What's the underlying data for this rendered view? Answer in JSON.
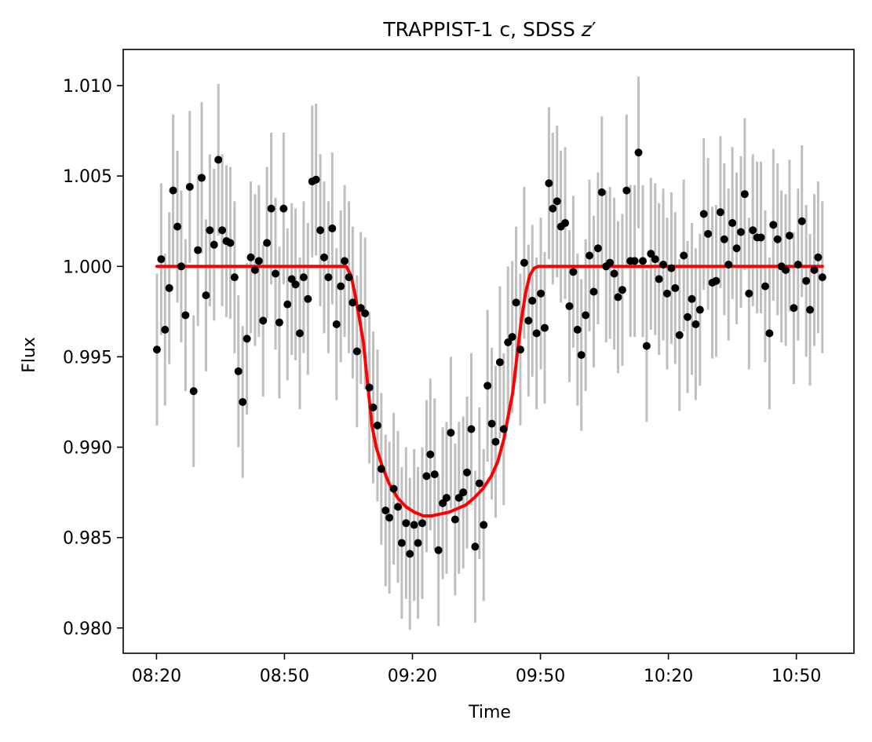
{
  "chart_data": {
    "type": "scatter",
    "title": "TRAPPIST-1 c, SDSS ",
    "title_band": "z",
    "title_band_suffix": "′",
    "xlabel": "Time",
    "ylabel": "Flux",
    "x_ticks": [
      "08:20",
      "08:50",
      "09:20",
      "09:50",
      "10:20",
      "10:50"
    ],
    "x_tick_minutes": [
      500,
      530,
      560,
      590,
      620,
      650
    ],
    "y_ticks": [
      "0.980",
      "0.985",
      "0.990",
      "0.995",
      "1.000",
      "1.005",
      "1.010"
    ],
    "y_tick_values": [
      0.98,
      0.985,
      0.99,
      0.995,
      1.0,
      1.005,
      1.01
    ],
    "xlim_minutes": [
      492.2,
      663.5
    ],
    "ylim": [
      0.9786,
      1.012
    ],
    "grid": false,
    "colors": {
      "points": "#000000",
      "errorbars": "#bfbfbf",
      "model": "#ff0000"
    },
    "series": [
      {
        "kind": "observations",
        "error": 0.0042,
        "x_minutes": [
          500.1,
          501.1,
          502.0,
          503.0,
          503.9,
          504.9,
          505.8,
          506.8,
          507.8,
          508.7,
          509.7,
          510.6,
          511.6,
          512.5,
          513.5,
          514.5,
          515.4,
          516.4,
          517.3,
          518.3,
          519.2,
          520.2,
          521.2,
          522.1,
          523.1,
          524.0,
          525.0,
          525.9,
          526.9,
          527.9,
          528.8,
          529.8,
          530.7,
          531.7,
          532.6,
          533.6,
          534.5,
          535.5,
          536.5,
          537.4,
          538.4,
          539.3,
          540.3,
          541.2,
          542.2,
          543.2,
          544.1,
          545.1,
          546.0,
          547.0,
          547.9,
          548.9,
          549.9,
          550.8,
          551.8,
          552.7,
          553.7,
          554.6,
          555.6,
          556.6,
          557.5,
          558.5,
          559.4,
          560.4,
          561.3,
          562.3,
          563.3,
          564.2,
          565.2,
          566.1,
          567.1,
          568.0,
          569.0,
          570.0,
          570.9,
          571.9,
          572.8,
          573.8,
          574.7,
          575.7,
          576.7,
          577.6,
          578.6,
          579.5,
          580.5,
          581.4,
          582.4,
          583.4,
          584.3,
          585.3,
          586.2,
          587.2,
          588.1,
          589.1,
          590.1,
          591.0,
          592.0,
          592.9,
          593.9,
          594.8,
          595.8,
          596.8,
          597.7,
          598.7,
          599.6,
          600.6,
          601.5,
          602.5,
          603.5,
          604.4,
          605.4,
          606.3,
          607.3,
          608.2,
          609.2,
          610.2,
          611.1,
          612.1,
          613.0,
          614.0,
          614.9,
          615.9,
          616.9,
          617.8,
          618.8,
          619.7,
          620.7,
          621.6,
          622.6,
          623.6,
          624.5,
          625.5,
          626.4,
          627.4,
          628.3,
          629.3,
          630.3,
          631.2,
          632.2,
          633.1,
          634.1,
          635.0,
          636.0,
          637.0,
          637.9,
          638.9,
          639.8,
          640.8,
          641.7,
          642.7,
          643.7,
          644.6,
          645.6,
          646.5,
          647.5,
          648.4,
          649.4,
          650.4,
          651.3,
          652.3,
          653.2,
          654.2,
          655.1,
          656.1
        ],
        "flux": [
          0.9954,
          1.0004,
          0.9965,
          0.9988,
          1.0042,
          1.0022,
          1.0,
          0.9973,
          1.0044,
          0.9931,
          1.0009,
          1.0049,
          0.9984,
          1.002,
          1.0012,
          1.0059,
          1.002,
          1.0014,
          1.0013,
          0.9994,
          0.9942,
          0.9925,
          0.996,
          1.0005,
          0.9998,
          1.0003,
          0.997,
          1.0013,
          1.0032,
          0.9996,
          0.9969,
          1.0032,
          0.9979,
          0.9993,
          0.999,
          0.9963,
          0.9994,
          0.9982,
          1.0047,
          1.0048,
          1.002,
          1.0005,
          0.9994,
          1.0021,
          0.9968,
          0.9989,
          1.0003,
          0.9994,
          0.998,
          0.9953,
          0.9977,
          0.9974,
          0.9933,
          0.9922,
          0.9912,
          0.9888,
          0.9865,
          0.9861,
          0.9877,
          0.9867,
          0.9847,
          0.9858,
          0.9841,
          0.9857,
          0.9847,
          0.9858,
          0.9884,
          0.9896,
          0.9885,
          0.9843,
          0.9869,
          0.9872,
          0.9908,
          0.986,
          0.9872,
          0.9875,
          0.9886,
          0.991,
          0.9845,
          0.988,
          0.9857,
          0.9934,
          0.9913,
          0.9903,
          0.9947,
          0.991,
          0.9958,
          0.9961,
          0.998,
          0.9954,
          1.0002,
          0.997,
          0.9981,
          0.9963,
          0.9985,
          0.9966,
          1.0046,
          1.0032,
          1.0036,
          1.0022,
          1.0024,
          0.9978,
          0.9997,
          0.9965,
          0.9951,
          0.9973,
          1.0006,
          0.9986,
          1.001,
          1.0041,
          1.0,
          1.0002,
          0.9996,
          0.9983,
          0.9987,
          1.0042,
          1.0003,
          1.0003,
          1.0063,
          1.0003,
          0.9956,
          1.0007,
          1.0004,
          0.9993,
          1.0001,
          0.9985,
          0.9999,
          0.9988,
          0.9962,
          1.0006,
          0.9972,
          0.9982,
          0.9968,
          0.9976,
          1.0029,
          1.0018,
          0.9991,
          0.9992,
          1.003,
          1.0015,
          1.0001,
          1.0024,
          1.001,
          1.0019,
          1.004,
          0.9985,
          1.002,
          1.0016,
          1.0016,
          0.9989,
          0.9963,
          1.0023,
          1.0015,
          1.0,
          0.9998,
          1.0017,
          0.9977,
          1.0001,
          1.0025,
          0.9992,
          0.9976,
          0.9998,
          1.0005,
          0.9994
        ]
      },
      {
        "kind": "model",
        "x_minutes": [
          500.1,
          544.5,
          545.6,
          546.5,
          547.5,
          548.5,
          549.5,
          550.5,
          551.5,
          553.0,
          554.5,
          556.5,
          558.5,
          560.5,
          562.5,
          564.5,
          566.5,
          568.5,
          570.5,
          572.5,
          574.5,
          576.5,
          578.5,
          580.0,
          581.5,
          582.5,
          583.5,
          584.5,
          585.5,
          586.5,
          587.5,
          588.5,
          589.5,
          656.1
        ],
        "flux": [
          1.0,
          1.0,
          0.9995,
          0.9985,
          0.9972,
          0.9958,
          0.9935,
          0.9912,
          0.99,
          0.9889,
          0.988,
          0.9872,
          0.9867,
          0.9864,
          0.9862,
          0.9862,
          0.9863,
          0.9864,
          0.9866,
          0.9868,
          0.9872,
          0.9877,
          0.9884,
          0.9892,
          0.9905,
          0.9918,
          0.993,
          0.995,
          0.997,
          0.9985,
          0.9995,
          0.9999,
          1.0,
          1.0
        ]
      }
    ]
  }
}
